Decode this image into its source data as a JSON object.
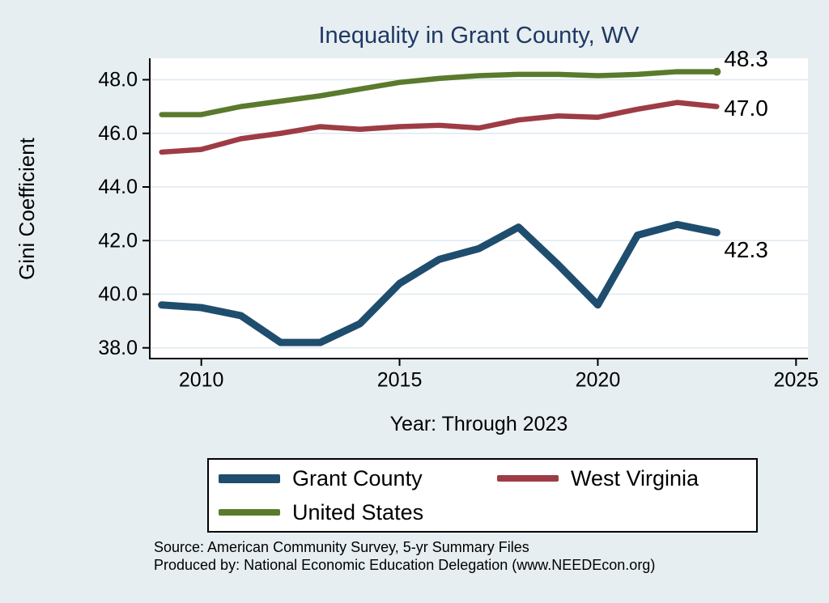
{
  "page": {
    "background_color": "#e6eef1"
  },
  "chart_data": {
    "type": "line",
    "title": "Inequality in Grant County, WV",
    "title_color": "#1f3864",
    "xlabel": "Year: Through 2023",
    "ylabel": "Gini Coefficient",
    "x": [
      2009,
      2010,
      2011,
      2012,
      2013,
      2014,
      2015,
      2016,
      2017,
      2018,
      2019,
      2020,
      2021,
      2022,
      2023
    ],
    "series": [
      {
        "name": "Grant County",
        "color": "#1f4d6e",
        "line_width": 9,
        "values": [
          39.6,
          39.5,
          39.2,
          38.2,
          38.2,
          38.9,
          40.4,
          41.3,
          41.7,
          42.5,
          41.1,
          39.6,
          42.2,
          42.6,
          42.3
        ],
        "end_label": "42.3",
        "end_dot": false
      },
      {
        "name": "West Virginia",
        "color": "#9e3c45",
        "line_width": 6.5,
        "values": [
          45.3,
          45.4,
          45.8,
          46.0,
          46.25,
          46.15,
          46.25,
          46.3,
          46.2,
          46.5,
          46.65,
          46.6,
          46.9,
          47.15,
          47.0
        ],
        "end_label": "47.0",
        "end_dot": false
      },
      {
        "name": "United States",
        "color": "#5a7a2d",
        "line_width": 6.5,
        "values": [
          46.7,
          46.7,
          47.0,
          47.2,
          47.4,
          47.65,
          47.9,
          48.05,
          48.15,
          48.2,
          48.2,
          48.15,
          48.2,
          48.3,
          48.3
        ],
        "end_label": "48.3",
        "end_dot": true
      }
    ],
    "y_ticks": [
      "38.0",
      "40.0",
      "42.0",
      "44.0",
      "46.0",
      "48.0"
    ],
    "x_ticks": [
      "2010",
      "2015",
      "2020",
      "2025"
    ],
    "ylim": [
      37.6,
      48.8
    ],
    "xlim": [
      2008.7,
      2025.3
    ],
    "grid": true,
    "grid_color": "#dde9f0",
    "plot_background": "#ffffff",
    "axis_color": "#000000",
    "legend_position": "bottom"
  },
  "footer": {
    "source_line": "Source: American Community Survey, 5-yr Summary Files",
    "produced_line": "Produced by: National Economic Education Delegation (www.NEEDEcon.org)"
  }
}
